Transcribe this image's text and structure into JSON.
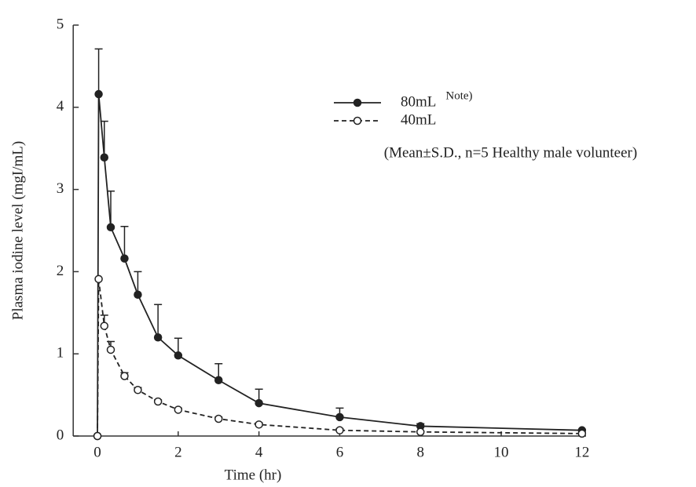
{
  "chart_data": {
    "type": "line",
    "x_label": "Time (hr)",
    "y_label": "Plasma iodine level (mgI/mL)",
    "annotation": "(Mean±S.D., n=5 Healthy male volunteer)",
    "x": [
      0,
      0.03,
      0.17,
      0.33,
      0.67,
      1,
      1.5,
      2,
      3,
      4,
      6,
      8,
      12
    ],
    "series": [
      {
        "name": "80mL",
        "note": "Note)",
        "color": "#222222",
        "marker": "filled",
        "dash": false,
        "values": [
          0,
          4.16,
          3.39,
          2.54,
          2.16,
          1.72,
          1.2,
          0.98,
          0.68,
          0.4,
          0.23,
          0.12,
          0.07
        ],
        "errors": [
          null,
          0.55,
          0.44,
          0.44,
          0.39,
          0.28,
          0.4,
          0.21,
          0.2,
          0.17,
          0.11,
          0.03,
          0.01
        ]
      },
      {
        "name": "40mL",
        "color": "#222222",
        "marker": "open",
        "dash": true,
        "values": [
          0,
          1.91,
          1.34,
          1.05,
          0.73,
          0.56,
          0.42,
          0.32,
          0.21,
          0.14,
          0.07,
          0.05,
          0.03
        ],
        "errors": [
          null,
          null,
          0.13,
          0.1,
          0.04,
          0.03,
          0.02,
          0.02,
          0.02,
          0.02,
          0.02,
          0.01,
          0.01
        ]
      }
    ],
    "xlim": [
      -0.6,
      12.1
    ],
    "ylim": [
      0,
      5
    ],
    "xticks": [
      0,
      2,
      4,
      6,
      8,
      10,
      12
    ],
    "yticks": [
      0,
      1,
      2,
      3,
      4,
      5
    ]
  }
}
